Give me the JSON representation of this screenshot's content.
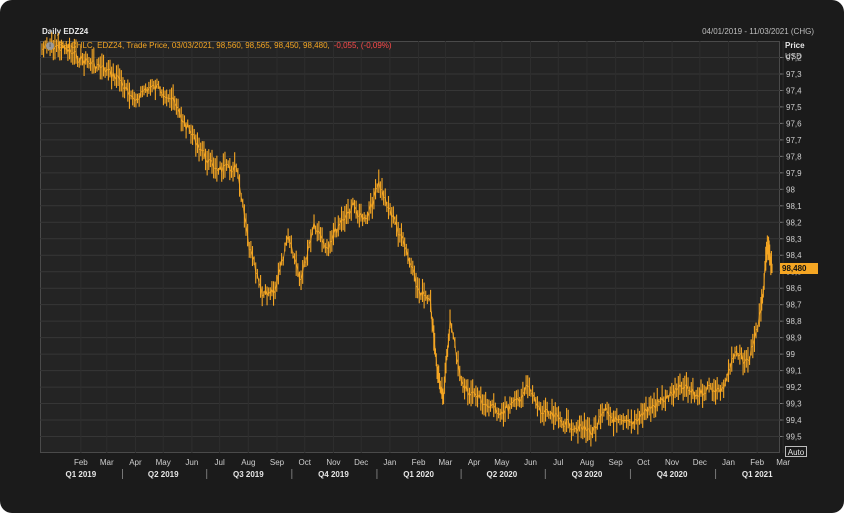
{
  "header": {
    "title": "Daily EDZ24",
    "date_range": "04/01/2019 - 11/03/2021 (CHG)"
  },
  "legend": {
    "icon": "info-circle-icon",
    "text": "BarOHLC, EDZ24, Trade Price, 03/03/2021, 98,560, 98,565, 98,450, 98,480,",
    "change": "-0,055, (-0,09%)"
  },
  "axis": {
    "header": "Price",
    "unit": "USD",
    "auto_label": "Auto"
  },
  "last_price_label": "98,480",
  "colors": {
    "background": "#1b1b1b",
    "plot": "#242424",
    "bars": "#f5a623",
    "grid": "#363636",
    "negative": "#ff4a4a"
  },
  "chart_data": {
    "type": "line",
    "title": "Daily EDZ24",
    "xlabel": "",
    "ylabel": "Price USD",
    "y_inverted": true,
    "ylim": [
      97.1,
      99.6
    ],
    "y_ticks": [
      "97,2",
      "97,3",
      "97,4",
      "97,5",
      "97,6",
      "97,7",
      "97,8",
      "97,9",
      "98",
      "98,1",
      "98,2",
      "98,3",
      "98,4",
      "98,5",
      "98,6",
      "98,7",
      "98,8",
      "98,9",
      "99",
      "99,1",
      "99,2",
      "99,3",
      "99,4",
      "99,5"
    ],
    "y_tick_values": [
      97.2,
      97.3,
      97.4,
      97.5,
      97.6,
      97.7,
      97.8,
      97.9,
      98.0,
      98.1,
      98.2,
      98.3,
      98.4,
      98.5,
      98.6,
      98.7,
      98.8,
      98.9,
      99.0,
      99.1,
      99.2,
      99.3,
      99.4,
      99.5
    ],
    "month_labels": [
      "Feb",
      "Mar",
      "Apr",
      "May",
      "Jun",
      "Jul",
      "Aug",
      "Sep",
      "Oct",
      "Nov",
      "Dec",
      "Jan",
      "Feb",
      "Mar",
      "Apr",
      "May",
      "Jun",
      "Jul",
      "Aug",
      "Sep",
      "Oct",
      "Nov",
      "Dec",
      "Jan",
      "Feb",
      "Mar"
    ],
    "quarter_labels": [
      "Q1 2019",
      "Q2 2019",
      "Q3 2019",
      "Q4 2019",
      "Q1 2020",
      "Q2 2020",
      "Q3 2020",
      "Q4 2020",
      "Q1 2021"
    ],
    "x": [
      "2019-01-04",
      "2019-01-18",
      "2019-02-01",
      "2019-02-15",
      "2019-03-01",
      "2019-03-15",
      "2019-03-29",
      "2019-04-12",
      "2019-04-26",
      "2019-05-10",
      "2019-05-24",
      "2019-06-07",
      "2019-06-21",
      "2019-07-05",
      "2019-07-19",
      "2019-08-02",
      "2019-08-16",
      "2019-08-30",
      "2019-09-13",
      "2019-09-27",
      "2019-10-11",
      "2019-10-25",
      "2019-11-08",
      "2019-11-22",
      "2019-12-06",
      "2019-12-20",
      "2020-01-03",
      "2020-01-17",
      "2020-01-31",
      "2020-02-14",
      "2020-02-28",
      "2020-03-06",
      "2020-03-13",
      "2020-03-20",
      "2020-04-03",
      "2020-04-17",
      "2020-05-01",
      "2020-05-15",
      "2020-05-29",
      "2020-06-12",
      "2020-06-26",
      "2020-07-10",
      "2020-07-24",
      "2020-08-07",
      "2020-08-21",
      "2020-09-04",
      "2020-09-18",
      "2020-10-02",
      "2020-10-16",
      "2020-10-30",
      "2020-11-13",
      "2020-11-27",
      "2020-12-11",
      "2020-12-25",
      "2021-01-08",
      "2021-01-22",
      "2021-02-05",
      "2021-02-19",
      "2021-02-26",
      "2021-03-03"
    ],
    "series": [
      {
        "values": [
          97.15,
          97.13,
          97.16,
          97.21,
          97.24,
          97.28,
          97.33,
          97.47,
          97.39,
          97.38,
          97.45,
          97.6,
          97.72,
          97.85,
          97.88,
          97.87,
          98.35,
          98.65,
          98.6,
          98.3,
          98.55,
          98.2,
          98.35,
          98.2,
          98.1,
          98.2,
          97.97,
          98.15,
          98.35,
          98.6,
          98.7,
          99.1,
          99.25,
          98.8,
          99.2,
          99.25,
          99.32,
          99.35,
          99.3,
          99.2,
          99.35,
          99.38,
          99.42,
          99.45,
          99.47,
          99.35,
          99.42,
          99.42,
          99.35,
          99.3,
          99.25,
          99.2,
          99.25,
          99.2,
          99.22,
          99.0,
          99.05,
          98.75,
          98.35,
          98.48
        ]
      }
    ]
  }
}
